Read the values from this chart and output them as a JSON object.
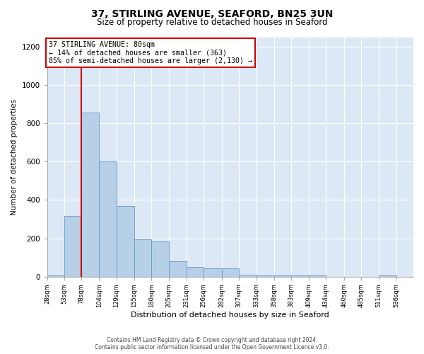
{
  "title1": "37, STIRLING AVENUE, SEAFORD, BN25 3UN",
  "title2": "Size of property relative to detached houses in Seaford",
  "xlabel": "Distribution of detached houses by size in Seaford",
  "ylabel": "Number of detached properties",
  "footer1": "Contains HM Land Registry data © Crown copyright and database right 2024.",
  "footer2": "Contains public sector information licensed under the Open Government Licence v3.0.",
  "annotation_line1": "37 STIRLING AVENUE: 80sqm",
  "annotation_line2": "← 14% of detached houses are smaller (363)",
  "annotation_line3": "85% of semi-detached houses are larger (2,130) →",
  "property_size_x": 78,
  "bar_left_edges": [
    28,
    53,
    78,
    104,
    129,
    155,
    180,
    205,
    231,
    256,
    282,
    307,
    333,
    358,
    383,
    409,
    434,
    460,
    485,
    511
  ],
  "bar_widths": [
    25,
    25,
    26,
    25,
    26,
    25,
    25,
    26,
    25,
    26,
    25,
    26,
    25,
    25,
    26,
    25,
    26,
    25,
    26,
    25
  ],
  "bar_heights": [
    5,
    315,
    855,
    600,
    370,
    195,
    185,
    80,
    50,
    45,
    45,
    10,
    5,
    5,
    5,
    5,
    0,
    0,
    0,
    5
  ],
  "bar_color": "#b8cfe8",
  "bar_edge_color": "#6699cc",
  "red_line_color": "#cc0000",
  "annotation_box_color": "#cc0000",
  "background_color": "#dce8f5",
  "ylim": [
    0,
    1250
  ],
  "yticks": [
    0,
    200,
    400,
    600,
    800,
    1000,
    1200
  ],
  "tick_labels": [
    "28sqm",
    "53sqm",
    "78sqm",
    "104sqm",
    "129sqm",
    "155sqm",
    "180sqm",
    "205sqm",
    "231sqm",
    "256sqm",
    "282sqm",
    "307sqm",
    "333sqm",
    "358sqm",
    "383sqm",
    "409sqm",
    "434sqm",
    "460sqm",
    "485sqm",
    "511sqm",
    "536sqm"
  ],
  "xlim_left": 28,
  "xlim_right": 561
}
